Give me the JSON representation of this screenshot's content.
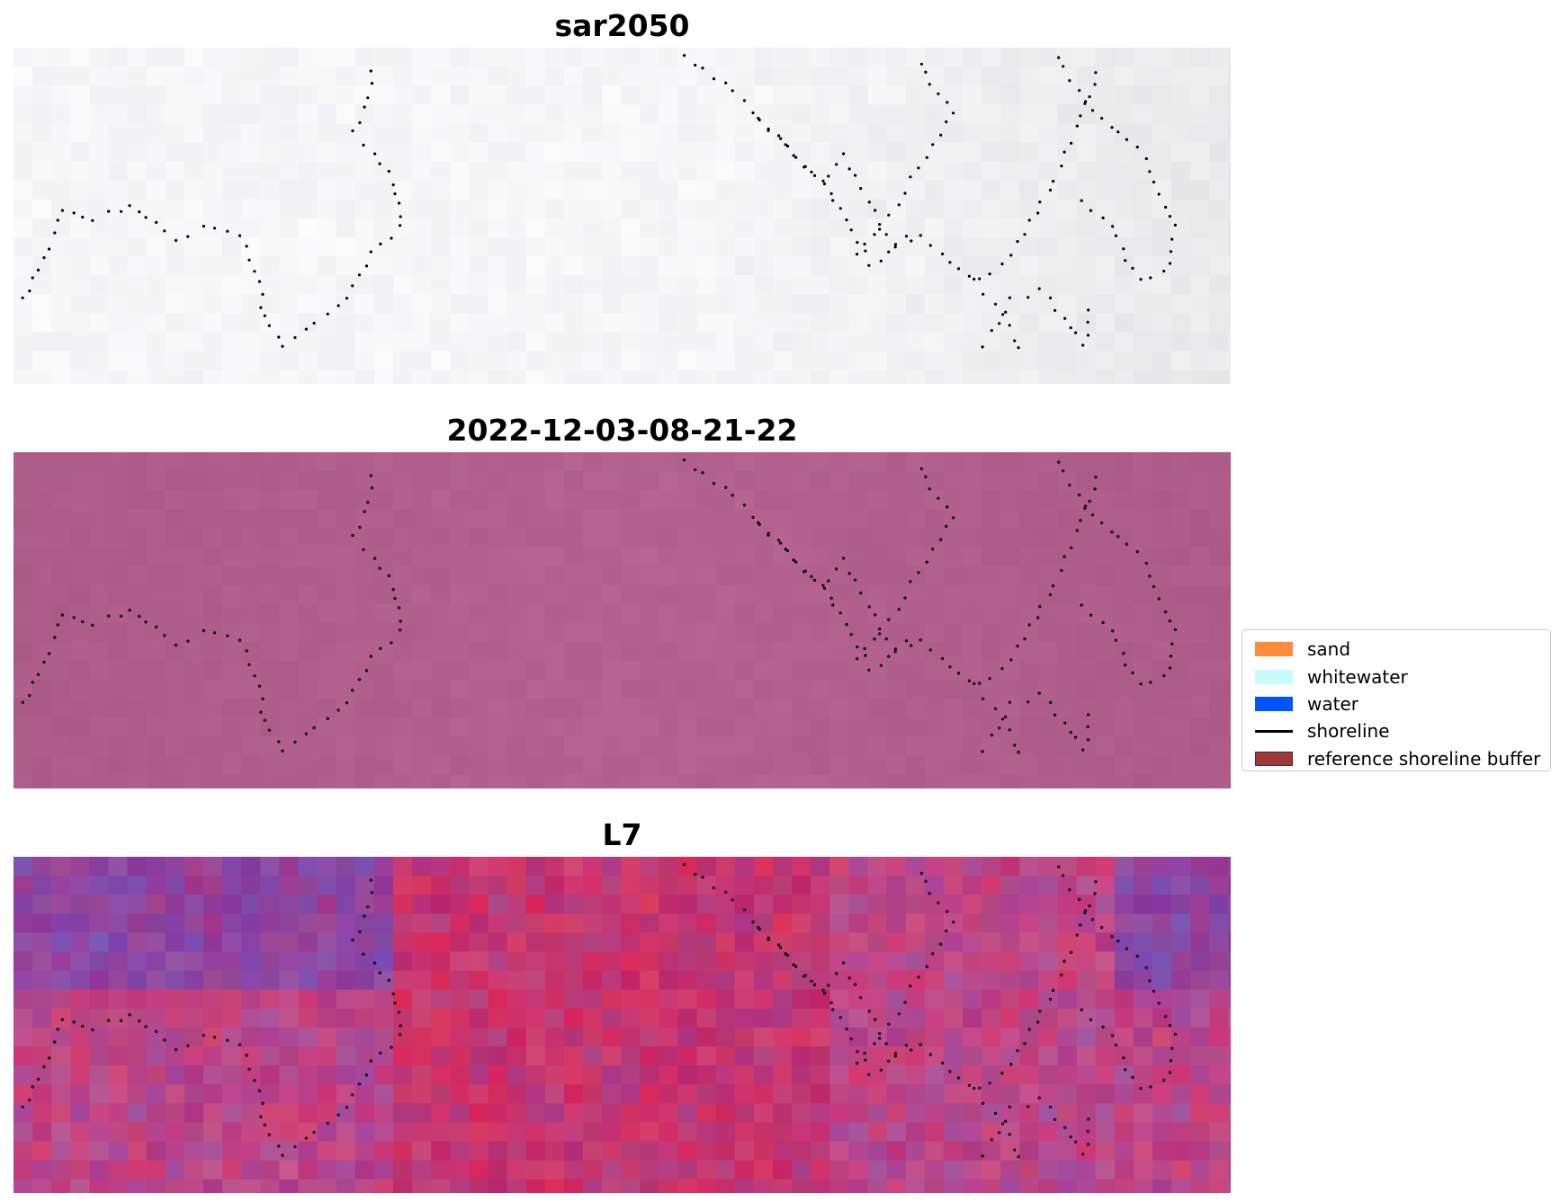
{
  "panels": [
    {
      "title": "sar2050",
      "style": "sar"
    },
    {
      "title": "2022-12-03-08-21-22",
      "style": "classified"
    },
    {
      "title": "L7",
      "style": "rgb"
    }
  ],
  "legend": {
    "items": [
      {
        "label": "sand",
        "kind": "patch",
        "color": "#ff8c3c"
      },
      {
        "label": "whitewater",
        "kind": "patch",
        "color": "#c8fafa"
      },
      {
        "label": "water",
        "kind": "patch",
        "color": "#0055ff"
      },
      {
        "label": "shoreline",
        "kind": "line",
        "color": "#000000"
      },
      {
        "label": "reference shoreline buffer",
        "kind": "patch",
        "color": "#992d2d"
      }
    ]
  },
  "colors": {
    "classified_base": "#b3628f",
    "shoreline_points": "#000000"
  }
}
